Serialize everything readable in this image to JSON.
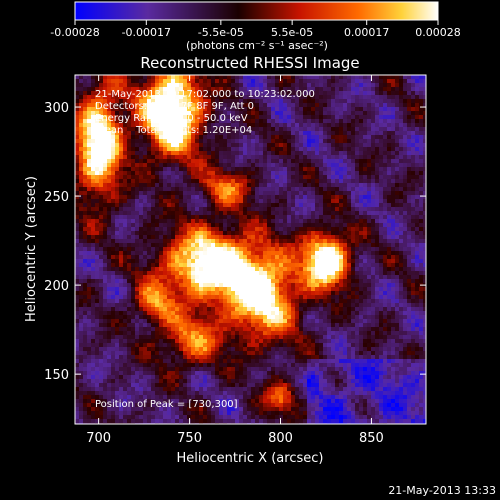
{
  "colorbar": {
    "ticks": [
      "-0.00028",
      "-0.00017",
      "-5.5e-05",
      "5.5e-05",
      "0.00017",
      "0.00028"
    ],
    "tick_values": [
      -0.00028,
      -0.00017,
      -5.5e-05,
      5.5e-05,
      0.00017,
      0.00028
    ],
    "units_label": "(photons cm⁻² s⁻¹ asec⁻²)",
    "range": [
      -0.00028,
      0.00028
    ]
  },
  "chart_data": {
    "type": "heatmap",
    "title": "Reconstructed RHESSI Image",
    "xlabel": "Heliocentric X (arcsec)",
    "ylabel": "Heliocentric Y (arcsec)",
    "xlim": [
      687,
      880
    ],
    "ylim": [
      122,
      318
    ],
    "xticks": [
      700,
      750,
      800,
      850
    ],
    "yticks": [
      150,
      200,
      250,
      300
    ],
    "colormap": [
      "#0000ff",
      "#5a2aa0",
      "#2a0000",
      "#c81400",
      "#ff6a00",
      "#ffd23a",
      "#ffffff"
    ],
    "info_lines": [
      "21-May-2013 10:17:02.000 to 10:23:02.000",
      "Detectors: 5F 6F 7F 8F 9F, Att 0",
      "Energy Range: 25.0 - 50.0 keV",
      "Clean    Total counts: 1.20E+04"
    ],
    "peak_label": "Position of Peak = [730,300]",
    "peak": [
      730,
      300
    ],
    "sources": [
      {
        "x": 740,
        "y": 298,
        "amp": 0.9,
        "sx": 12,
        "sy": 18
      },
      {
        "x": 700,
        "y": 280,
        "amp": 0.8,
        "sx": 9,
        "sy": 22
      },
      {
        "x": 760,
        "y": 212,
        "amp": 0.8,
        "sx": 18,
        "sy": 14
      },
      {
        "x": 790,
        "y": 195,
        "amp": 0.7,
        "sx": 14,
        "sy": 18
      },
      {
        "x": 825,
        "y": 215,
        "amp": 0.85,
        "sx": 9,
        "sy": 11
      },
      {
        "x": 750,
        "y": 170,
        "amp": 0.45,
        "sx": 12,
        "sy": 10
      },
      {
        "x": 770,
        "y": 255,
        "amp": 0.4,
        "sx": 10,
        "sy": 8
      },
      {
        "x": 800,
        "y": 138,
        "amp": 0.45,
        "sx": 6,
        "sy": 6
      },
      {
        "x": 730,
        "y": 190,
        "amp": 0.4,
        "sx": 8,
        "sy": 8
      }
    ]
  },
  "footer": {
    "timestamp": "21-May-2013 13:33"
  }
}
